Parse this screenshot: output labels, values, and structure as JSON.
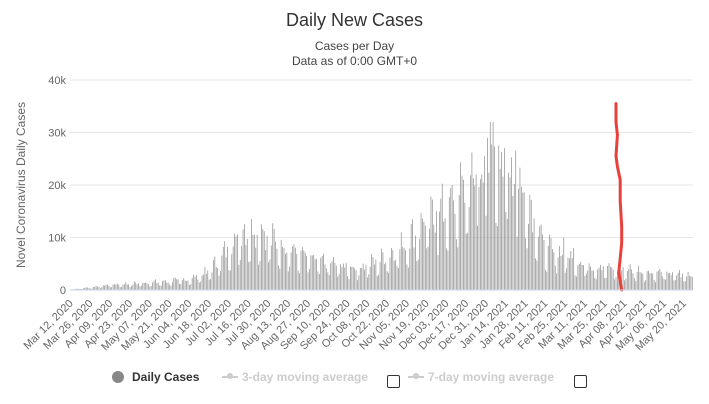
{
  "header": {
    "title": "Daily New Cases",
    "subtitle_line1": "Cases per Day",
    "subtitle_line2": "Data as of 0:00 GMT+0"
  },
  "legend": {
    "daily_cases": "Daily Cases",
    "avg3": "3-day moving average",
    "avg7": "7-day moving average"
  },
  "colors": {
    "bars": "#999999",
    "overlay": "#e8413c",
    "grid": "#e6e6e6",
    "legend_inactive": "#cccccc"
  },
  "chart_data": {
    "type": "bar",
    "title": "Daily New Cases",
    "subtitle": "Cases per Day",
    "ylabel": "Novel Coronavirus Daily Cases",
    "xlabel": "",
    "ylim": [
      0,
      40000
    ],
    "yticks": [
      0,
      10000,
      20000,
      30000,
      40000
    ],
    "ytick_labels": [
      "0",
      "10k",
      "20k",
      "30k",
      "40k"
    ],
    "x_start": "2020-03-12",
    "x_end": "2021-05-26",
    "x_tick_labels": [
      "Mar 12, 2020",
      "Mar 26, 2020",
      "Apr 09, 2020",
      "Apr 23, 2020",
      "May 07, 2020",
      "May 21, 2020",
      "Jun 04, 2020",
      "Jun 18, 2020",
      "Jul 02, 2020",
      "Jul 16, 2020",
      "Jul 30, 2020",
      "Aug 13, 2020",
      "Aug 27, 2020",
      "Sep 10, 2020",
      "Sep 24, 2020",
      "Oct 08, 2020",
      "Oct 22, 2020",
      "Nov 05, 2020",
      "Nov 19, 2020",
      "Dec 03, 2020",
      "Dec 17, 2020",
      "Dec 31, 2020",
      "Jan 14, 2021",
      "Jan 28, 2021",
      "Feb 11, 2021",
      "Feb 25, 2021",
      "Mar 11, 2021",
      "Mar 25, 2021",
      "Apr 08, 2021",
      "Apr 22, 2021",
      "May 06, 2021",
      "May 20, 2021"
    ],
    "series_knots": [
      [
        "2020-03-12",
        100
      ],
      [
        "2020-03-26",
        500
      ],
      [
        "2020-04-09",
        1000
      ],
      [
        "2020-04-23",
        1200
      ],
      [
        "2020-05-07",
        1400
      ],
      [
        "2020-05-21",
        1700
      ],
      [
        "2020-06-04",
        2000
      ],
      [
        "2020-06-18",
        3500
      ],
      [
        "2020-07-02",
        8000
      ],
      [
        "2020-07-12",
        11000
      ],
      [
        "2020-07-23",
        10500
      ],
      [
        "2020-08-06",
        9000
      ],
      [
        "2020-08-20",
        7000
      ],
      [
        "2020-09-03",
        5500
      ],
      [
        "2020-09-17",
        4800
      ],
      [
        "2020-10-01",
        4200
      ],
      [
        "2020-10-15",
        5500
      ],
      [
        "2020-10-29",
        7500
      ],
      [
        "2020-11-12",
        11000
      ],
      [
        "2020-11-26",
        14000
      ],
      [
        "2020-12-10",
        17000
      ],
      [
        "2020-12-24",
        21000
      ],
      [
        "2021-01-05",
        25000
      ],
      [
        "2021-01-14",
        24000
      ],
      [
        "2021-01-28",
        18000
      ],
      [
        "2021-02-11",
        8000
      ],
      [
        "2021-02-25",
        6500
      ],
      [
        "2021-03-11",
        4800
      ],
      [
        "2021-03-25",
        4200
      ],
      [
        "2021-04-08",
        4000
      ],
      [
        "2021-04-22",
        3500
      ],
      [
        "2021-05-06",
        3200
      ],
      [
        "2021-05-26",
        2800
      ]
    ],
    "peaks": [
      [
        "2020-07-18",
        13500
      ],
      [
        "2020-07-25",
        12500
      ],
      [
        "2020-11-17",
        13000
      ],
      [
        "2020-11-26",
        15000
      ],
      [
        "2020-12-07",
        20000
      ],
      [
        "2020-12-15",
        21000
      ],
      [
        "2020-12-24",
        22000
      ],
      [
        "2021-01-01",
        29000
      ],
      [
        "2021-01-05",
        32000
      ],
      [
        "2021-01-09",
        27500
      ],
      [
        "2021-01-13",
        27000
      ],
      [
        "2021-01-21",
        26500
      ],
      [
        "2021-02-24",
        10000
      ],
      [
        "2021-03-03",
        8000
      ]
    ],
    "overlay_line": {
      "color": "#e8413c",
      "points": [
        [
          "2021-04-02",
          35500
        ],
        [
          "2021-04-02",
          32000
        ],
        [
          "2021-04-03",
          29500
        ],
        [
          "2021-04-02",
          25500
        ],
        [
          "2021-04-03",
          23500
        ],
        [
          "2021-04-05",
          21000
        ],
        [
          "2021-04-05",
          17000
        ],
        [
          "2021-04-06",
          12000
        ],
        [
          "2021-04-06",
          9000
        ],
        [
          "2021-04-05",
          6000
        ],
        [
          "2021-04-04",
          3500
        ],
        [
          "2021-04-05",
          1500
        ],
        [
          "2021-04-06",
          0
        ]
      ]
    }
  }
}
